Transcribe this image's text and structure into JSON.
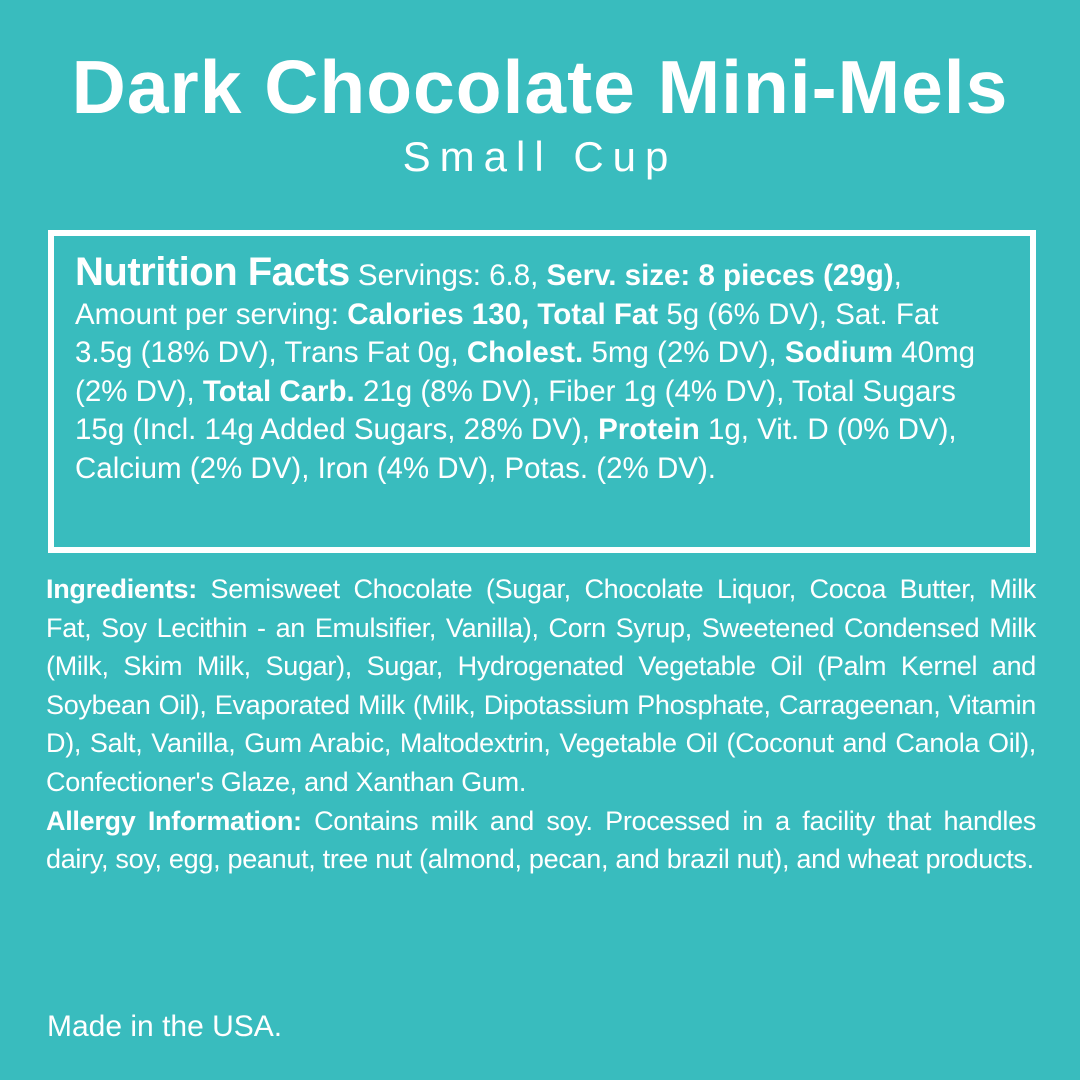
{
  "colors": {
    "background": "#39bcbe",
    "text": "#ffffff",
    "box_border": "#ffffff"
  },
  "header": {
    "title": "Dark Chocolate Mini-Mels",
    "subtitle": "Small Cup"
  },
  "nutrition_facts": {
    "segments": [
      {
        "style": "heading",
        "text": "Nutrition Facts"
      },
      {
        "style": "regular",
        "text": " Servings: 6.8, "
      },
      {
        "style": "bold",
        "text": "Serv. size: 8 pieces (29g)"
      },
      {
        "style": "regular",
        "text": ", Amount per serving: "
      },
      {
        "style": "bold",
        "text": "Calories 130, Total Fat"
      },
      {
        "style": "regular",
        "text": " 5g (6% DV), Sat. Fat 3.5g (18% DV), Trans Fat 0g, "
      },
      {
        "style": "bold",
        "text": "Cholest."
      },
      {
        "style": "regular",
        "text": " 5mg (2% DV), "
      },
      {
        "style": "bold",
        "text": "Sodium"
      },
      {
        "style": "regular",
        "text": " 40mg (2% DV), "
      },
      {
        "style": "bold",
        "text": "Total Carb."
      },
      {
        "style": "regular",
        "text": " 21g (8% DV), Fiber 1g (4% DV), Total Sugars 15g (Incl. 14g Added Sugars, 28% DV), "
      },
      {
        "style": "bold",
        "text": "Protein"
      },
      {
        "style": "regular",
        "text": " 1g, Vit. D (0% DV), Calcium (2% DV), Iron (4% DV), Potas. (2% DV)."
      }
    ]
  },
  "ingredients": {
    "segments": [
      {
        "style": "bold",
        "text": "Ingredients:"
      },
      {
        "style": "regular",
        "text": " Semisweet Chocolate (Sugar, Chocolate Liquor, Cocoa Butter, Milk Fat, Soy Lecithin - an Emulsifier, Vanilla), Corn Syrup, Sweetened Condensed Milk (Milk, Skim Milk, Sugar), Sugar, Hydrogenated Vegetable Oil (Palm Kernel and Soybean Oil), Evaporated Milk (Milk, Dipotassium Phosphate, Carrageenan, Vitamin D), Salt, Vanilla, Gum Arabic, Maltodextrin, Vegetable Oil (Coconut and Canola Oil), Confectioner's Glaze, and Xanthan Gum."
      }
    ]
  },
  "allergy": {
    "segments": [
      {
        "style": "bold",
        "text": "Allergy Information:"
      },
      {
        "style": "regular",
        "text": " Contains milk and soy. Processed in a facility that handles dairy, soy, egg, peanut, tree nut (almond, pecan, and brazil nut), and wheat products."
      }
    ]
  },
  "footer": {
    "made_in": "Made in the USA."
  }
}
